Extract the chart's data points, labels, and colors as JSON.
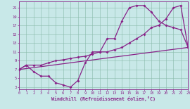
{
  "bg_color": "#c8e8e8",
  "grid_color": "#88bbaa",
  "line_color": "#882288",
  "markersize": 2.0,
  "linewidth": 0.9,
  "xlim": [
    0,
    23
  ],
  "ylim": [
    2.5,
    22.5
  ],
  "yticks": [
    3,
    5,
    7,
    9,
    11,
    13,
    15,
    17,
    19,
    21
  ],
  "xticks": [
    0,
    1,
    2,
    3,
    4,
    5,
    6,
    7,
    8,
    9,
    10,
    11,
    12,
    13,
    14,
    15,
    16,
    17,
    18,
    19,
    20,
    21,
    22,
    23
  ],
  "xlabel": "Windchill (Refroidissement éolien,°C)",
  "line1_x": [
    0,
    1,
    2,
    3,
    4,
    5,
    6,
    7,
    8,
    9,
    10,
    11,
    12,
    13,
    14,
    15,
    16,
    17,
    18,
    19,
    20,
    21,
    22,
    23
  ],
  "line1_y": [
    7,
    8,
    6.5,
    5.5,
    5.5,
    4,
    3.5,
    3,
    4.5,
    8.5,
    11,
    11,
    14,
    14,
    18,
    21,
    21.5,
    21.5,
    20,
    18,
    17,
    16.5,
    16,
    12
  ],
  "line2_x": [
    0,
    1,
    2,
    3,
    4,
    5,
    6,
    7,
    8,
    9,
    10,
    11,
    12,
    13,
    14,
    15,
    16,
    17,
    18,
    19,
    20,
    21,
    22,
    23
  ],
  "line2_y": [
    7,
    8,
    8,
    8,
    8.5,
    9,
    9.2,
    9.5,
    9.8,
    10,
    10.5,
    11,
    11,
    11.5,
    12,
    13,
    14,
    15,
    16.5,
    17,
    18.5,
    21,
    21.5,
    12
  ],
  "line3_x": [
    0,
    23
  ],
  "line3_y": [
    7,
    12
  ]
}
